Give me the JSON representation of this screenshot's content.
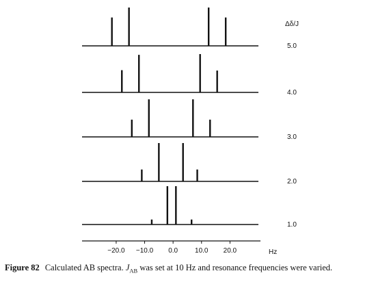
{
  "chart_data": {
    "type": "stick-spectrum",
    "series_label": "Δδ/J",
    "x_unit": "Hz",
    "x_ticks": [
      -20.0,
      -10.0,
      0.0,
      10.0,
      20.0
    ],
    "x_tick_labels": [
      "−20.0",
      "−10.0",
      "0.0",
      "10.0",
      "20.0"
    ],
    "xlim": [
      -32,
      30
    ],
    "spectra": [
      {
        "ratio": "5.0",
        "lines": [
          {
            "x": -21.5,
            "h": 0.74
          },
          {
            "x": -15.5,
            "h": 1.0
          },
          {
            "x": 12.5,
            "h": 1.0
          },
          {
            "x": 18.5,
            "h": 0.74
          }
        ]
      },
      {
        "ratio": "4.0",
        "lines": [
          {
            "x": -18.0,
            "h": 0.58
          },
          {
            "x": -12.0,
            "h": 0.98
          },
          {
            "x": 9.5,
            "h": 1.0
          },
          {
            "x": 15.5,
            "h": 0.57
          }
        ]
      },
      {
        "ratio": "3.0",
        "lines": [
          {
            "x": -14.5,
            "h": 0.45
          },
          {
            "x": -8.5,
            "h": 0.98
          },
          {
            "x": 7.0,
            "h": 0.98
          },
          {
            "x": 13.0,
            "h": 0.45
          }
        ]
      },
      {
        "ratio": "2.0",
        "lines": [
          {
            "x": -11.0,
            "h": 0.31
          },
          {
            "x": -5.0,
            "h": 1.0
          },
          {
            "x": 3.5,
            "h": 1.0
          },
          {
            "x": 8.5,
            "h": 0.31
          }
        ]
      },
      {
        "ratio": "1.0",
        "lines": [
          {
            "x": -7.5,
            "h": 0.13
          },
          {
            "x": -2.0,
            "h": 1.0
          },
          {
            "x": 1.0,
            "h": 1.0
          },
          {
            "x": 6.5,
            "h": 0.13
          }
        ]
      }
    ]
  },
  "caption": {
    "label": "Figure 82",
    "text_before": "Calculated AB spectra. ",
    "j_symbol": "J",
    "j_subscript": "AB",
    "text_after": " was set at 10 Hz and resonance frequencies were varied."
  }
}
